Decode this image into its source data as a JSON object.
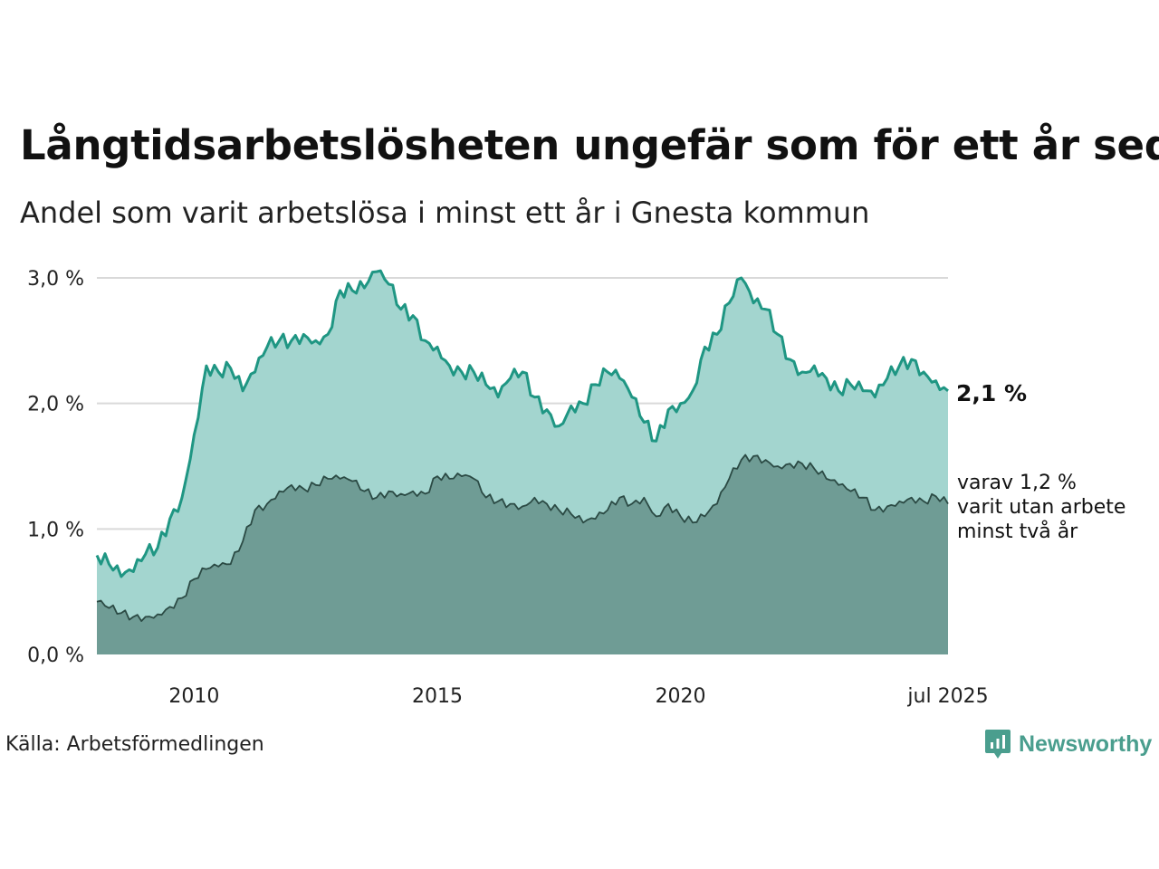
{
  "title": "Långtidsarbetslösheten ungefär som för ett år sedan",
  "subtitle": "Andel som varit arbetslösa i minst ett år i Gnesta kommun",
  "source": "Källa: Arbetsförmedlingen",
  "brand": {
    "name": "Newsworthy",
    "icon": "newsworthy-logo-icon",
    "color": "#4a9e8e"
  },
  "chart_data": {
    "type": "area",
    "x_start": "2008-01",
    "x_end": "2025-07",
    "x_ticks": [
      {
        "date": "2010-01",
        "label": "2010"
      },
      {
        "date": "2015-01",
        "label": "2015"
      },
      {
        "date": "2020-01",
        "label": "2020"
      },
      {
        "date": "2025-07",
        "label": "jul 2025"
      }
    ],
    "ylim": [
      0,
      3.1
    ],
    "y_ticks": [
      {
        "value": 0,
        "label": "0,0 %"
      },
      {
        "value": 1,
        "label": "1,0 %"
      },
      {
        "value": 2,
        "label": "2,0 %"
      },
      {
        "value": 3,
        "label": "3,0 %"
      }
    ],
    "grid": "horizontal",
    "series": [
      {
        "key": "one_year",
        "fill": "#a3d5cf",
        "line": "#1f9683",
        "end_label": "2,1 %",
        "anchors": [
          [
            "2008-01",
            0.79
          ],
          [
            "2008-04",
            0.72
          ],
          [
            "2008-07",
            0.62
          ],
          [
            "2008-10",
            0.66
          ],
          [
            "2009-01",
            0.8
          ],
          [
            "2009-04",
            0.85
          ],
          [
            "2009-07",
            1.08
          ],
          [
            "2009-10",
            1.25
          ],
          [
            "2010-01",
            1.75
          ],
          [
            "2010-04",
            2.3
          ],
          [
            "2010-07",
            2.25
          ],
          [
            "2010-10",
            2.28
          ],
          [
            "2011-01",
            2.1
          ],
          [
            "2011-04",
            2.25
          ],
          [
            "2011-07",
            2.45
          ],
          [
            "2011-10",
            2.5
          ],
          [
            "2012-01",
            2.5
          ],
          [
            "2012-04",
            2.55
          ],
          [
            "2012-07",
            2.5
          ],
          [
            "2012-10",
            2.55
          ],
          [
            "2013-01",
            2.9
          ],
          [
            "2013-04",
            2.9
          ],
          [
            "2013-07",
            2.92
          ],
          [
            "2013-10",
            3.05
          ],
          [
            "2014-01",
            2.95
          ],
          [
            "2014-04",
            2.75
          ],
          [
            "2014-07",
            2.7
          ],
          [
            "2014-10",
            2.5
          ],
          [
            "2015-01",
            2.45
          ],
          [
            "2015-04",
            2.3
          ],
          [
            "2015-07",
            2.25
          ],
          [
            "2015-10",
            2.25
          ],
          [
            "2016-01",
            2.15
          ],
          [
            "2016-04",
            2.05
          ],
          [
            "2016-07",
            2.2
          ],
          [
            "2016-10",
            2.25
          ],
          [
            "2017-01",
            2.05
          ],
          [
            "2017-04",
            1.95
          ],
          [
            "2017-07",
            1.82
          ],
          [
            "2017-10",
            1.98
          ],
          [
            "2018-01",
            2.0
          ],
          [
            "2018-04",
            2.15
          ],
          [
            "2018-07",
            2.25
          ],
          [
            "2018-10",
            2.2
          ],
          [
            "2019-01",
            2.05
          ],
          [
            "2019-04",
            1.85
          ],
          [
            "2019-07",
            1.7
          ],
          [
            "2019-10",
            1.95
          ],
          [
            "2020-01",
            2.0
          ],
          [
            "2020-04",
            2.1
          ],
          [
            "2020-07",
            2.45
          ],
          [
            "2020-10",
            2.55
          ],
          [
            "2021-01",
            2.8
          ],
          [
            "2021-04",
            3.0
          ],
          [
            "2021-07",
            2.8
          ],
          [
            "2021-10",
            2.75
          ],
          [
            "2022-01",
            2.55
          ],
          [
            "2022-04",
            2.35
          ],
          [
            "2022-07",
            2.25
          ],
          [
            "2022-10",
            2.3
          ],
          [
            "2023-01",
            2.2
          ],
          [
            "2023-04",
            2.1
          ],
          [
            "2023-07",
            2.15
          ],
          [
            "2023-10",
            2.1
          ],
          [
            "2024-01",
            2.05
          ],
          [
            "2024-04",
            2.2
          ],
          [
            "2024-07",
            2.3
          ],
          [
            "2024-10",
            2.35
          ],
          [
            "2025-01",
            2.25
          ],
          [
            "2025-04",
            2.18
          ],
          [
            "2025-07",
            2.1
          ]
        ]
      },
      {
        "key": "two_years",
        "fill": "#6f9c95",
        "line": "#2b4a44",
        "end_label": [
          "varav 1,2 %",
          "varit utan arbete",
          "minst två år"
        ],
        "anchors": [
          [
            "2008-01",
            0.42
          ],
          [
            "2008-04",
            0.37
          ],
          [
            "2008-07",
            0.33
          ],
          [
            "2008-10",
            0.3
          ],
          [
            "2009-01",
            0.3
          ],
          [
            "2009-04",
            0.32
          ],
          [
            "2009-07",
            0.38
          ],
          [
            "2009-10",
            0.45
          ],
          [
            "2010-01",
            0.6
          ],
          [
            "2010-04",
            0.68
          ],
          [
            "2010-07",
            0.7
          ],
          [
            "2010-10",
            0.72
          ],
          [
            "2011-01",
            0.9
          ],
          [
            "2011-04",
            1.15
          ],
          [
            "2011-07",
            1.2
          ],
          [
            "2011-10",
            1.3
          ],
          [
            "2012-01",
            1.35
          ],
          [
            "2012-04",
            1.32
          ],
          [
            "2012-07",
            1.35
          ],
          [
            "2012-10",
            1.4
          ],
          [
            "2013-01",
            1.4
          ],
          [
            "2013-04",
            1.38
          ],
          [
            "2013-07",
            1.3
          ],
          [
            "2013-10",
            1.25
          ],
          [
            "2014-01",
            1.3
          ],
          [
            "2014-04",
            1.28
          ],
          [
            "2014-07",
            1.3
          ],
          [
            "2014-10",
            1.28
          ],
          [
            "2015-01",
            1.42
          ],
          [
            "2015-04",
            1.4
          ],
          [
            "2015-07",
            1.42
          ],
          [
            "2015-10",
            1.4
          ],
          [
            "2016-01",
            1.25
          ],
          [
            "2016-04",
            1.22
          ],
          [
            "2016-07",
            1.2
          ],
          [
            "2016-10",
            1.18
          ],
          [
            "2017-01",
            1.25
          ],
          [
            "2017-04",
            1.2
          ],
          [
            "2017-07",
            1.15
          ],
          [
            "2017-10",
            1.12
          ],
          [
            "2018-01",
            1.05
          ],
          [
            "2018-04",
            1.08
          ],
          [
            "2018-07",
            1.15
          ],
          [
            "2018-10",
            1.25
          ],
          [
            "2019-01",
            1.2
          ],
          [
            "2019-04",
            1.25
          ],
          [
            "2019-07",
            1.1
          ],
          [
            "2019-10",
            1.2
          ],
          [
            "2020-01",
            1.1
          ],
          [
            "2020-04",
            1.05
          ],
          [
            "2020-07",
            1.1
          ],
          [
            "2020-10",
            1.2
          ],
          [
            "2021-01",
            1.4
          ],
          [
            "2021-04",
            1.55
          ],
          [
            "2021-07",
            1.58
          ],
          [
            "2021-10",
            1.55
          ],
          [
            "2022-01",
            1.5
          ],
          [
            "2022-04",
            1.52
          ],
          [
            "2022-07",
            1.52
          ],
          [
            "2022-10",
            1.48
          ],
          [
            "2023-01",
            1.4
          ],
          [
            "2023-04",
            1.35
          ],
          [
            "2023-07",
            1.3
          ],
          [
            "2023-10",
            1.25
          ],
          [
            "2024-01",
            1.15
          ],
          [
            "2024-04",
            1.18
          ],
          [
            "2024-07",
            1.22
          ],
          [
            "2024-10",
            1.25
          ],
          [
            "2025-01",
            1.22
          ],
          [
            "2025-04",
            1.26
          ],
          [
            "2025-07",
            1.2
          ]
        ]
      }
    ]
  }
}
